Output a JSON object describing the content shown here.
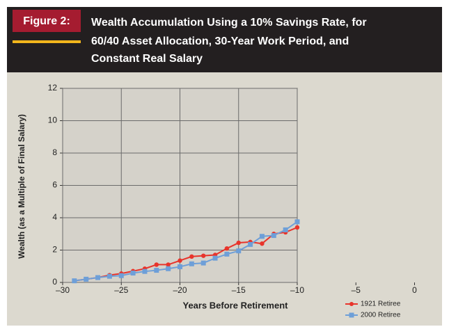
{
  "chart_data": {
    "type": "line",
    "figure_label": "Figure 2:",
    "title_lines": [
      "Wealth Accumulation Using a 10% Savings Rate, for",
      "60/40 Asset Allocation, 30-Year Work Period, and",
      "Constant Real Salary"
    ],
    "x_label": "Years Before Retirement",
    "y_label": "Wealth (as a Multiple of Final Salary)",
    "x": [
      -29,
      -28,
      -27,
      -26,
      -25,
      -24,
      -23,
      -22,
      -21,
      -20,
      -19,
      -18,
      -17,
      -16,
      -15,
      -14,
      -13,
      -12,
      -11,
      -10
    ],
    "series": [
      {
        "name": "1921 Retiree",
        "color": "#e8342b",
        "marker": "circle",
        "values": [
          0.1,
          0.2,
          0.3,
          0.45,
          0.55,
          0.7,
          0.85,
          1.1,
          1.1,
          1.35,
          1.6,
          1.65,
          1.7,
          2.1,
          2.45,
          2.5,
          2.4,
          3.0,
          3.1,
          3.4
        ]
      },
      {
        "name": "2000 Retiree",
        "color": "#6e9fd8",
        "marker": "square",
        "values": [
          0.1,
          0.2,
          0.3,
          0.38,
          0.42,
          0.58,
          0.68,
          0.75,
          0.85,
          0.97,
          1.15,
          1.2,
          1.5,
          1.75,
          1.95,
          2.35,
          2.85,
          2.9,
          3.25,
          3.75
        ]
      }
    ],
    "xlim": [
      -30,
      -10
    ],
    "xticks": [
      {
        "value": -30,
        "label": "–30"
      },
      {
        "value": -25,
        "label": "–25"
      },
      {
        "value": -20,
        "label": "–20"
      },
      {
        "value": -15,
        "label": "–15"
      },
      {
        "value": -10,
        "label": "–10"
      },
      {
        "value": -5,
        "label": "–5"
      },
      0
    ],
    "ylim": [
      0,
      12
    ],
    "yticks": [
      0,
      2,
      4,
      6,
      8,
      10,
      12
    ],
    "grid": true
  }
}
